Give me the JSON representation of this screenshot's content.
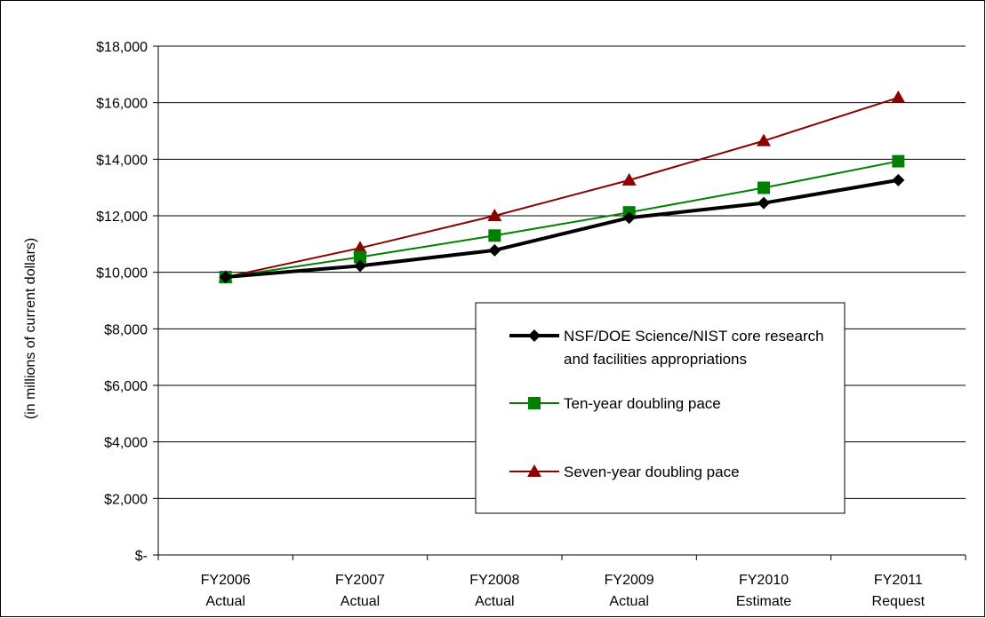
{
  "chart_data": {
    "type": "line",
    "categories": [
      [
        "FY2006",
        "Actual"
      ],
      [
        "FY2007",
        "Actual"
      ],
      [
        "FY2008",
        "Actual"
      ],
      [
        "FY2009",
        "Actual"
      ],
      [
        "FY2010",
        "Estimate"
      ],
      [
        "FY2011",
        "Request"
      ]
    ],
    "ylabel": "(in millions of current dollars)",
    "ylim": [
      0,
      18000
    ],
    "yticks": [
      0,
      2000,
      4000,
      6000,
      8000,
      10000,
      12000,
      14000,
      16000,
      18000
    ],
    "ytick_labels": [
      "$-",
      "$2,000",
      "$4,000",
      "$6,000",
      "$8,000",
      "$10,000",
      "$12,000",
      "$14,000",
      "$16,000",
      "$18,000"
    ],
    "grid": true,
    "legend_position": "center-right",
    "series": [
      {
        "name": "NSF/DOE Science/NIST core research and facilities appropriations",
        "legend_lines": [
          "NSF/DOE Science/NIST core research",
          "and facilities appropriations"
        ],
        "values": [
          9830,
          10230,
          10780,
          11930,
          12450,
          13260
        ],
        "color": "#000000",
        "marker": "diamond"
      },
      {
        "name": "Ten-year doubling pace",
        "legend_lines": [
          "Ten-year doubling pace"
        ],
        "values": [
          9830,
          10540,
          11300,
          12120,
          12990,
          13930
        ],
        "color": "#008000",
        "marker": "square"
      },
      {
        "name": "Seven-year doubling pace",
        "legend_lines": [
          "Seven-year doubling pace"
        ],
        "values": [
          9830,
          10860,
          12000,
          13260,
          14650,
          16180
        ],
        "color": "#8b0000",
        "marker": "triangle"
      }
    ]
  }
}
